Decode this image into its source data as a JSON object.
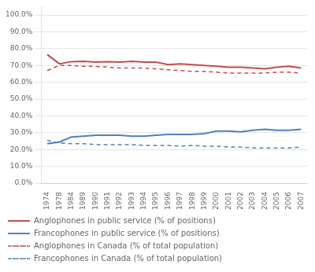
{
  "chart_data": {
    "type": "line",
    "categories": [
      "1974",
      "1978",
      "1984",
      "1989",
      "1990",
      "1991",
      "1992",
      "1993",
      "1994",
      "1995",
      "1996",
      "1997",
      "1998",
      "1999",
      "2000",
      "2001",
      "2002",
      "2003",
      "2004",
      "2005",
      "2006",
      "2007"
    ],
    "series": [
      {
        "name": "Anglophones in public service (% of positions)",
        "color": "#c0504d",
        "line_style": "solid",
        "values": [
          76.5,
          71.0,
          72.3,
          72.5,
          72.0,
          72.3,
          72.0,
          72.5,
          72.0,
          72.0,
          70.5,
          71.0,
          70.5,
          70.0,
          69.5,
          69.0,
          69.0,
          68.5,
          68.0,
          69.0,
          69.5,
          68.5
        ]
      },
      {
        "name": "Francophones in public service (% of positions)",
        "color": "#4f81bd",
        "line_style": "solid",
        "values": [
          23.5,
          24.5,
          27.5,
          28.0,
          28.5,
          28.5,
          28.5,
          28.0,
          28.0,
          28.5,
          29.0,
          29.0,
          29.0,
          29.5,
          31.0,
          31.0,
          30.5,
          31.5,
          32.0,
          31.5,
          31.5,
          32.0
        ]
      },
      {
        "name": "Anglophones in Canada (% of total population)",
        "color": "#c0504d",
        "line_style": "dashed",
        "values": [
          67.0,
          70.0,
          70.0,
          69.5,
          69.5,
          69.0,
          68.5,
          68.5,
          68.5,
          68.0,
          67.5,
          67.0,
          66.5,
          66.5,
          66.0,
          65.5,
          65.5,
          65.5,
          65.5,
          66.0,
          66.0,
          65.5
        ]
      },
      {
        "name": "Francophones in Canada (% of total population)",
        "color": "#4f81bd",
        "line_style": "dashed",
        "values": [
          25.5,
          24.0,
          23.5,
          23.5,
          23.0,
          23.0,
          23.0,
          23.0,
          22.5,
          22.5,
          22.5,
          22.0,
          22.5,
          22.0,
          22.0,
          21.5,
          21.5,
          21.0,
          21.0,
          21.0,
          21.0,
          21.5
        ]
      }
    ],
    "ylim": [
      0,
      105
    ],
    "yticks": [
      {
        "value": 0,
        "label": "0.0%"
      },
      {
        "value": 10,
        "label": "10.0%"
      },
      {
        "value": 20,
        "label": "20.0%"
      },
      {
        "value": 30,
        "label": "30.0%"
      },
      {
        "value": 40,
        "label": "40.0%"
      },
      {
        "value": 50,
        "label": "50.0%"
      },
      {
        "value": 60,
        "label": "60.0%"
      },
      {
        "value": 70,
        "label": "70.0%"
      },
      {
        "value": 80,
        "label": "80.0%"
      },
      {
        "value": 90,
        "label": "90.0%"
      },
      {
        "value": 100,
        "label": "100.0%"
      }
    ],
    "grid": true,
    "legend": "lower left"
  }
}
